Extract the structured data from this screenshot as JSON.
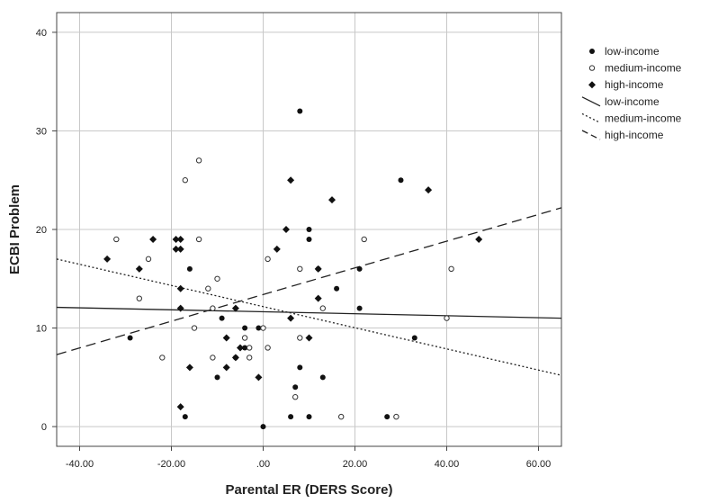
{
  "chart_data": {
    "type": "scatter",
    "xlabel": "Parental ER (DERS Score)",
    "ylabel": "ECBI Problem",
    "xlim": [
      -45,
      65
    ],
    "ylim": [
      -2,
      42
    ],
    "x_ticks": [
      -40,
      -20,
      0,
      20,
      40,
      60
    ],
    "x_tick_labels": [
      "-40.00",
      "-20.00",
      ".00",
      "20.00",
      "40.00",
      "60.00"
    ],
    "y_ticks": [
      0,
      10,
      20,
      30,
      40
    ],
    "y_tick_labels": [
      "0",
      "10",
      "20",
      "30",
      "40"
    ],
    "grid": true,
    "legend_position": "right",
    "legend": [
      {
        "label": "low-income",
        "kind": "marker",
        "marker": "dot"
      },
      {
        "label": "medium-income",
        "kind": "marker",
        "marker": "open-circle"
      },
      {
        "label": "high-income",
        "kind": "marker",
        "marker": "diamond"
      },
      {
        "label": "low-income",
        "kind": "line",
        "dash": "solid"
      },
      {
        "label": "medium-income",
        "kind": "line",
        "dash": "dotted"
      },
      {
        "label": "high-income",
        "kind": "line",
        "dash": "dashed"
      }
    ],
    "series": [
      {
        "name": "low-income",
        "marker": "dot",
        "points": [
          [
            8,
            32
          ],
          [
            30,
            25
          ],
          [
            10,
            20
          ],
          [
            10,
            19
          ],
          [
            -16,
            16
          ],
          [
            21,
            16
          ],
          [
            16,
            14
          ],
          [
            21,
            12
          ],
          [
            -29,
            9
          ],
          [
            33,
            9
          ],
          [
            -9,
            11
          ],
          [
            -10,
            5
          ],
          [
            -4,
            10
          ],
          [
            -6,
            7
          ],
          [
            8,
            6
          ],
          [
            7,
            4
          ],
          [
            13,
            5
          ],
          [
            -1,
            10
          ],
          [
            6,
            1
          ],
          [
            10,
            1
          ],
          [
            27,
            1
          ],
          [
            0,
            0
          ],
          [
            -17,
            1
          ],
          [
            -4,
            8
          ],
          [
            12,
            16
          ]
        ]
      },
      {
        "name": "medium-income",
        "marker": "open-circle",
        "points": [
          [
            -14,
            27
          ],
          [
            -17,
            25
          ],
          [
            -32,
            19
          ],
          [
            -14,
            19
          ],
          [
            22,
            19
          ],
          [
            1,
            17
          ],
          [
            -25,
            17
          ],
          [
            41,
            16
          ],
          [
            8,
            16
          ],
          [
            -12,
            14
          ],
          [
            -11,
            12
          ],
          [
            -27,
            13
          ],
          [
            -10,
            15
          ],
          [
            13,
            12
          ],
          [
            -15,
            10
          ],
          [
            -11,
            7
          ],
          [
            -22,
            7
          ],
          [
            -3,
            7
          ],
          [
            -3,
            8
          ],
          [
            1,
            8
          ],
          [
            0,
            10
          ],
          [
            -4,
            9
          ],
          [
            8,
            9
          ],
          [
            7,
            3
          ],
          [
            17,
            1
          ],
          [
            29,
            1
          ],
          [
            40,
            11
          ]
        ]
      },
      {
        "name": "high-income",
        "marker": "diamond",
        "points": [
          [
            6,
            25
          ],
          [
            36,
            24
          ],
          [
            15,
            23
          ],
          [
            -24,
            19
          ],
          [
            -19,
            19
          ],
          [
            -18,
            19
          ],
          [
            47,
            19
          ],
          [
            -19,
            18
          ],
          [
            -18,
            18
          ],
          [
            3,
            18
          ],
          [
            5,
            20
          ],
          [
            -34,
            17
          ],
          [
            -27,
            16
          ],
          [
            12,
            16
          ],
          [
            -18,
            14
          ],
          [
            -18,
            12
          ],
          [
            -6,
            12
          ],
          [
            12,
            13
          ],
          [
            -8,
            9
          ],
          [
            -5,
            8
          ],
          [
            6,
            11
          ],
          [
            10,
            9
          ],
          [
            -6,
            7
          ],
          [
            -16,
            6
          ],
          [
            -8,
            6
          ],
          [
            -1,
            5
          ],
          [
            -18,
            2
          ]
        ]
      }
    ],
    "fit_lines": [
      {
        "name": "low-income",
        "dash": "solid",
        "x": [
          -45,
          65
        ],
        "y": [
          12.1,
          11.0
        ]
      },
      {
        "name": "medium-income",
        "dash": "dotted",
        "x": [
          -45,
          65
        ],
        "y": [
          17.0,
          5.2
        ]
      },
      {
        "name": "high-income",
        "dash": "dashed",
        "x": [
          -45,
          65
        ],
        "y": [
          7.3,
          22.2
        ]
      }
    ]
  }
}
